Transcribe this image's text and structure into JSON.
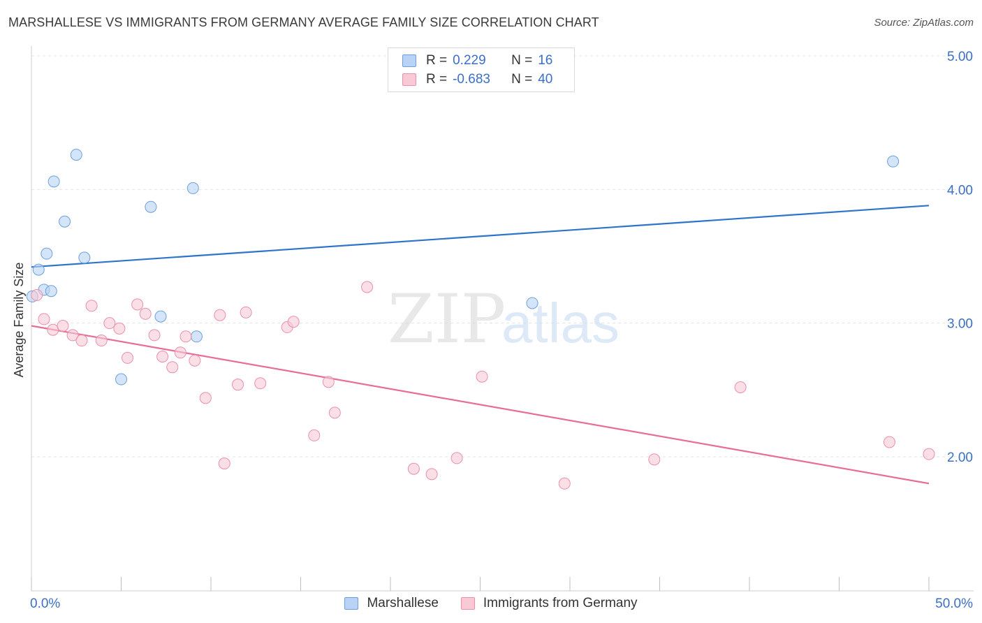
{
  "title": "MARSHALLESE VS IMMIGRANTS FROM GERMANY AVERAGE FAMILY SIZE CORRELATION CHART",
  "source": "Source: ZipAtlas.com",
  "watermark": {
    "zip": "ZIP",
    "atlas": "atlas"
  },
  "legend": {
    "r_label": "R =",
    "n_label": "N =",
    "series1": {
      "r": "0.229",
      "n": "16"
    },
    "series2": {
      "r": "-0.683",
      "n": "40"
    }
  },
  "colors": {
    "blue_fill": "#b8d3f5",
    "blue_stroke": "#6d9fdc",
    "blue_line": "#2f74cc",
    "pink_fill": "#f9c9d6",
    "pink_stroke": "#ea8fab",
    "pink_line": "#e86d97",
    "axis_text": "#3a6fc7",
    "grid": "#e3e3e3"
  },
  "chart_data": {
    "type": "scatter",
    "title": "MARSHALLESE VS IMMIGRANTS FROM GERMANY AVERAGE FAMILY SIZE CORRELATION CHART",
    "xlabel": "",
    "ylabel": "Average Family Size",
    "xlim": [
      0,
      50
    ],
    "ylim": [
      1.2,
      5.1
    ],
    "x_tick_labels": [
      "0.0%",
      "50.0%"
    ],
    "y_ticks": [
      2.0,
      3.0,
      4.0,
      5.0
    ],
    "y_tick_labels": [
      "2.00",
      "3.00",
      "4.00",
      "5.00"
    ],
    "grid": true,
    "series": [
      {
        "name": "Marshallese",
        "points": [
          [
            0.05,
            3.2
          ],
          [
            0.4,
            3.4
          ],
          [
            0.7,
            3.25
          ],
          [
            0.85,
            3.52
          ],
          [
            1.1,
            3.24
          ],
          [
            1.25,
            4.06
          ],
          [
            1.85,
            3.76
          ],
          [
            2.5,
            4.26
          ],
          [
            2.95,
            3.49
          ],
          [
            5.0,
            2.58
          ],
          [
            6.65,
            3.87
          ],
          [
            7.2,
            3.05
          ],
          [
            9.0,
            4.01
          ],
          [
            9.2,
            2.9
          ],
          [
            27.9,
            3.15
          ],
          [
            48.0,
            4.21
          ]
        ],
        "trend": {
          "x": [
            0,
            50
          ],
          "y": [
            3.42,
            3.88
          ]
        }
      },
      {
        "name": "Immigrants from Germany",
        "points": [
          [
            0.3,
            3.21
          ],
          [
            0.7,
            3.03
          ],
          [
            1.2,
            2.95
          ],
          [
            1.75,
            2.98
          ],
          [
            2.3,
            2.91
          ],
          [
            2.8,
            2.87
          ],
          [
            3.35,
            3.13
          ],
          [
            3.9,
            2.87
          ],
          [
            4.35,
            3.0
          ],
          [
            4.9,
            2.96
          ],
          [
            5.35,
            2.74
          ],
          [
            5.9,
            3.14
          ],
          [
            6.35,
            3.07
          ],
          [
            6.85,
            2.91
          ],
          [
            7.3,
            2.75
          ],
          [
            7.85,
            2.67
          ],
          [
            8.3,
            2.78
          ],
          [
            8.6,
            2.9
          ],
          [
            9.1,
            2.72
          ],
          [
            9.7,
            2.44
          ],
          [
            10.5,
            3.06
          ],
          [
            10.75,
            1.95
          ],
          [
            11.5,
            2.54
          ],
          [
            11.95,
            3.08
          ],
          [
            12.75,
            2.55
          ],
          [
            14.25,
            2.97
          ],
          [
            14.6,
            3.01
          ],
          [
            15.75,
            2.16
          ],
          [
            16.55,
            2.56
          ],
          [
            16.9,
            2.33
          ],
          [
            18.7,
            3.27
          ],
          [
            21.3,
            1.91
          ],
          [
            22.3,
            1.87
          ],
          [
            23.7,
            1.99
          ],
          [
            25.1,
            2.6
          ],
          [
            29.7,
            1.8
          ],
          [
            34.7,
            1.98
          ],
          [
            39.5,
            2.52
          ],
          [
            47.8,
            2.11
          ],
          [
            50.0,
            2.02
          ]
        ],
        "trend": {
          "x": [
            0,
            50
          ],
          "y": [
            2.98,
            1.8
          ]
        }
      }
    ]
  },
  "bottom_legend": [
    "Marshallese",
    "Immigrants from Germany"
  ]
}
